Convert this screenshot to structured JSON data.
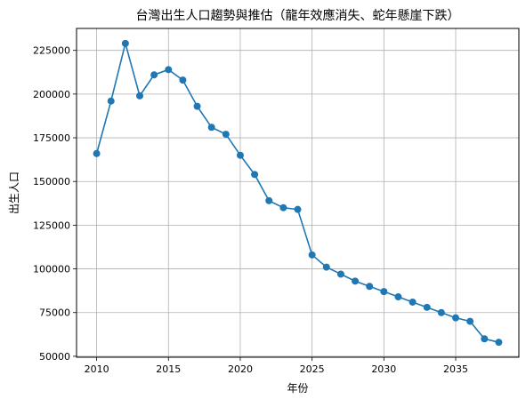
{
  "chart_data": {
    "type": "line",
    "title": "台灣出生人口趨勢與推估（龍年效應消失、蛇年懸崖下跌）",
    "xlabel": "年份",
    "ylabel": "出生人口",
    "x": [
      2010,
      2011,
      2012,
      2013,
      2014,
      2015,
      2016,
      2017,
      2018,
      2019,
      2020,
      2021,
      2022,
      2023,
      2024,
      2025,
      2026,
      2027,
      2028,
      2029,
      2030,
      2031,
      2032,
      2033,
      2034,
      2035,
      2036,
      2037,
      2038
    ],
    "series": [
      {
        "values": [
          166000,
          196000,
          229000,
          199000,
          211000,
          214000,
          208000,
          193000,
          181000,
          177000,
          165000,
          154000,
          139000,
          135000,
          134000,
          108000,
          101000,
          97000,
          93000,
          90000,
          87000,
          84000,
          81000,
          78000,
          75000,
          72000,
          70000,
          60000,
          58000
        ],
        "color": "#1f77b4",
        "marker": "circle"
      }
    ],
    "xlim": [
      2008.6,
      2039.4
    ],
    "ylim": [
      49450,
      237550
    ],
    "x_ticks": [
      2010,
      2015,
      2020,
      2025,
      2030,
      2035
    ],
    "y_ticks": [
      50000,
      75000,
      100000,
      125000,
      150000,
      175000,
      200000,
      225000
    ],
    "grid": true,
    "legend": "none"
  }
}
